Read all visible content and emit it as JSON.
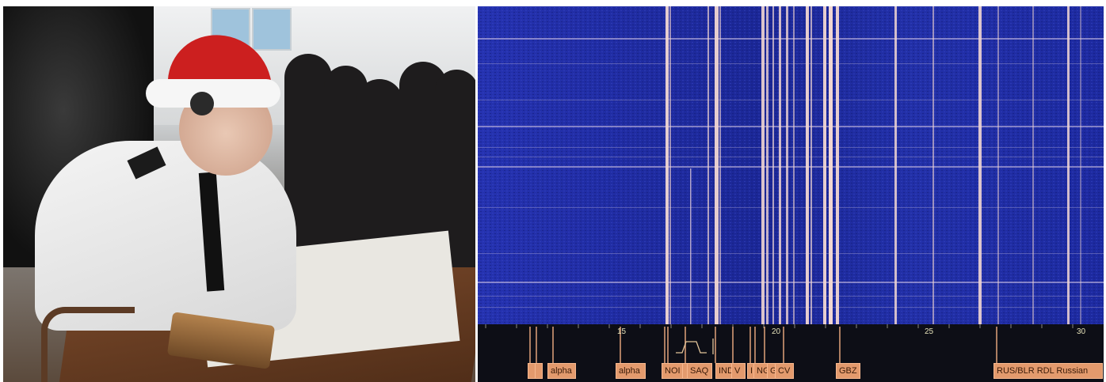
{
  "panels": {
    "left": {
      "type": "photo",
      "subject": "morse-operator-in-santa-hat"
    },
    "right": {
      "type": "sdr-waterfall"
    }
  },
  "colors": {
    "waterfall_bg": "#1f2a9b",
    "signal_line": "#f1d6d2",
    "scale_bg": "#0d0e16",
    "station_tag": "#e39a6d",
    "tick": "#e2a27a"
  },
  "frequency_scale": {
    "ticks": [
      {
        "label": "15"
      },
      {
        "label": "20"
      },
      {
        "label": "25"
      },
      {
        "label": "30"
      }
    ]
  },
  "stations": [
    {
      "label": ""
    },
    {
      "label": ""
    },
    {
      "label": "alpha"
    },
    {
      "label": "alpha"
    },
    {
      "label": "NOI"
    },
    {
      "label": ""
    },
    {
      "label": "SAQ"
    },
    {
      "label": "IND"
    },
    {
      "label": "V"
    },
    {
      "label": "I"
    },
    {
      "label": "NG"
    },
    {
      "label": "G"
    },
    {
      "label": "CV"
    },
    {
      "label": "GBZ"
    },
    {
      "label": "RUS/BLR RDL Russian"
    }
  ]
}
